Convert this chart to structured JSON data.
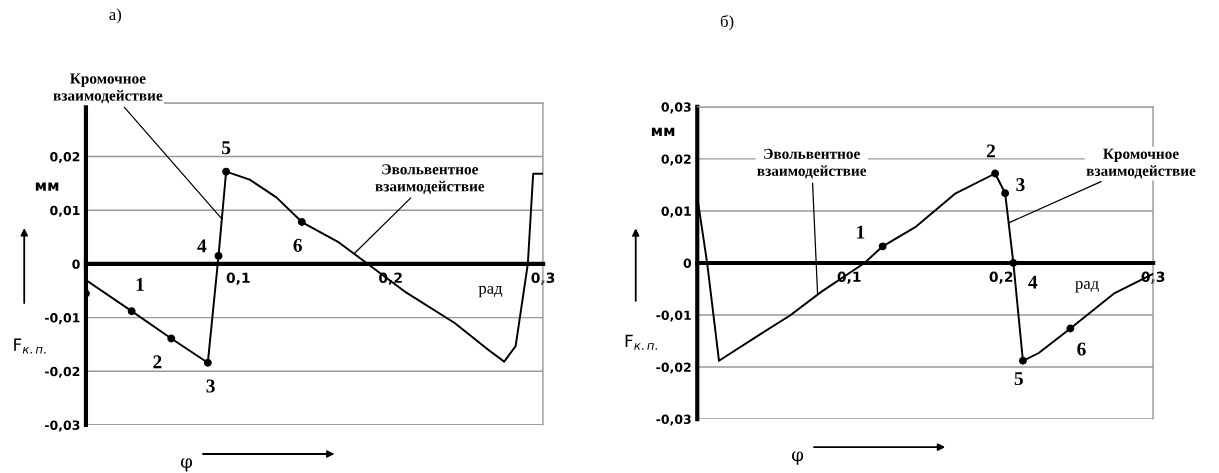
{
  "chart_data": [
    {
      "type": "line",
      "title": "а)",
      "xlabel": "φ",
      "ylabel": "F$_{к.п.}$",
      "grid": "y",
      "legend": false,
      "xlim": [
        0,
        0.3
      ],
      "ylim": [
        -0.03,
        0.03
      ],
      "xticks": [
        {
          "value": 0,
          "label": null
        },
        {
          "value": 0.1,
          "label": "0,1"
        },
        {
          "value": 0.2,
          "label": "0,2"
        },
        {
          "value": 0.3,
          "label": "0,3"
        }
      ],
      "yticks": [
        {
          "value": -0.03,
          "label": "-0,03"
        },
        {
          "value": -0.02,
          "label": "-0,02"
        },
        {
          "value": -0.01,
          "label": "-0,01"
        },
        0,
        {
          "value": 0.01,
          "label": "0,01"
        },
        {
          "value": 0.02,
          "label": "0,02"
        },
        {
          "value": 0.03,
          "label": null
        }
      ],
      "series": [
        {
          "color": "#000000",
          "line_style": "solid",
          "x": [
            0,
            0.03,
            0.056,
            0.08,
            0.087,
            0.092,
            0.1075,
            0.125,
            0.1417,
            0.166,
            0.185,
            0.209,
            0.242,
            0.264,
            0.2745,
            0.282,
            0.29,
            0.2935,
            0.3
          ],
          "values": [
            -0.003,
            -0.0088,
            -0.0139,
            -0.0184,
            0.0015,
            0.0172,
            0.0157,
            0.0124,
            0.0078,
            0.004,
            0,
            -0.0051,
            -0.011,
            -0.016,
            -0.0182,
            -0.0153,
            0,
            0.0168,
            0.0168
          ]
        },
        {
          "type": "scatter",
          "color": "#000000",
          "marker": "circle",
          "x": [
            0,
            0.03,
            0.056,
            0.08,
            0.087,
            0.092,
            0.1417
          ],
          "values": [
            -0.0055,
            -0.0088,
            -0.0139,
            -0.0184,
            0.0015,
            0.0172,
            0.0078
          ]
        }
      ],
      "annotations": [
        {
          "text": "1",
          "x": 0.03,
          "y": -0.0088
        },
        {
          "text": "2",
          "x": 0.056,
          "y": -0.0139
        },
        {
          "text": "3",
          "x": 0.08,
          "y": -0.0184
        },
        {
          "text": "4",
          "x": 0.087,
          "y": 0.0015
        },
        {
          "text": "5",
          "x": 0.092,
          "y": 0.0172
        },
        {
          "text": "6",
          "x": 0.1417,
          "y": 0.0078
        },
        {
          "text": "Кромочное\nвзаимодействие",
          "x": 0.0892,
          "y": 0.0084
        },
        {
          "text": "Эвольвентное\nвзаимодействие",
          "x": 0.176,
          "y": 0.0019
        },
        "мм",
        "рад"
      ]
    },
    {
      "type": "line",
      "title": "б)",
      "xlabel": "φ",
      "ylabel": "F$_{к.п.}$",
      "grid": "y",
      "legend": false,
      "xlim": [
        0,
        0.3
      ],
      "ylim": [
        -0.03,
        0.03
      ],
      "xticks": [
        {
          "value": 0,
          "label": null
        },
        {
          "value": 0.1,
          "label": "0,1"
        },
        {
          "value": 0.2,
          "label": "0,2"
        },
        {
          "value": 0.3,
          "label": "0,3"
        }
      ],
      "yticks": [
        {
          "value": -0.03,
          "label": "-0,03"
        },
        {
          "value": -0.02,
          "label": "-0,02"
        },
        {
          "value": -0.01,
          "label": "-0,01"
        },
        0,
        {
          "value": 0.01,
          "label": "0,01"
        },
        {
          "value": 0.02,
          "label": "0,02"
        },
        {
          "value": 0.03,
          "label": "0,03"
        }
      ],
      "series": [
        {
          "color": "#000000",
          "line_style": "solid",
          "x": [
            0,
            0.0065,
            0.0143,
            0.0403,
            0.061,
            0.0818,
            0.11,
            0.122,
            0.144,
            0.17,
            0.196,
            0.2026,
            0.208,
            0.2143,
            0.2247,
            0.2455,
            0.274,
            0.3
          ],
          "values": [
            0.0127,
            0,
            -0.0188,
            -0.0139,
            -0.0101,
            -0.0055,
            0,
            0.0032,
            0.007,
            0.0134,
            0.0172,
            0.0134,
            0,
            -0.0188,
            -0.0173,
            -0.0126,
            -0.0059,
            -0.0021
          ]
        },
        {
          "type": "scatter",
          "color": "#000000",
          "marker": "circle",
          "x": [
            0.122,
            0.196,
            0.2026,
            0.208,
            0.2143,
            0.2455
          ],
          "values": [
            0.0032,
            0.0172,
            0.0134,
            0,
            -0.0188,
            -0.0126
          ]
        }
      ],
      "annotations": [
        {
          "text": "1",
          "x": 0.122,
          "y": 0.0032
        },
        {
          "text": "2",
          "x": 0.196,
          "y": 0.0172
        },
        {
          "text": "3",
          "x": 0.2026,
          "y": 0.0134
        },
        {
          "text": "4",
          "x": 0.208,
          "y": 0
        },
        {
          "text": "5",
          "x": 0.2143,
          "y": -0.0188
        },
        {
          "text": "6",
          "x": 0.2455,
          "y": -0.0126
        },
        {
          "text": "Эвольвентное\nвзаимодействие",
          "x": 0.0792,
          "y": -0.0061
        },
        {
          "text": "Кромочное\nвзаимодействие",
          "x": 0.2049,
          "y": 0.0077
        },
        "мм",
        "рад"
      ]
    }
  ]
}
